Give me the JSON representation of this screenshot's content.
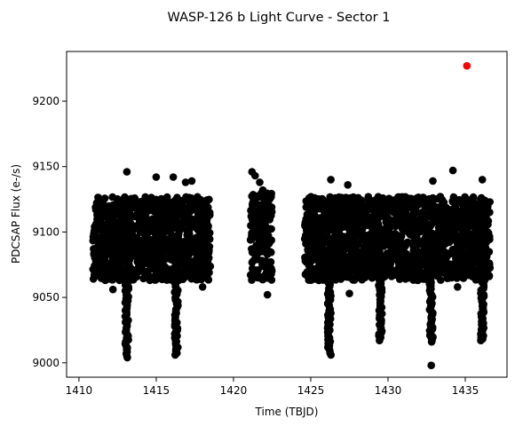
{
  "chart_data": {
    "type": "scatter",
    "title": "WASP-126 b Light Curve - Sector 1",
    "xlabel": "Time (TBJD)",
    "ylabel": "PDCSAP Flux (e-/s)",
    "xlim": [
      1409.2,
      1437.7
    ],
    "ylim": [
      8989,
      9238
    ],
    "xticks": [
      1410,
      1415,
      1420,
      1425,
      1430,
      1435
    ],
    "yticks": [
      9000,
      9050,
      9100,
      9150,
      9200
    ],
    "grid": false,
    "legend": "none",
    "point_color": "#000000",
    "outlier_color": "#ff0000",
    "segments": [
      {
        "x_start": 1410.9,
        "x_end": 1418.5,
        "flux_min": 9063,
        "flux_max": 9127
      },
      {
        "x_start": 1421.1,
        "x_end": 1422.5,
        "flux_min": 9063,
        "flux_max": 9130
      },
      {
        "x_start": 1424.6,
        "x_end": 1436.6,
        "flux_min": 9063,
        "flux_max": 9127
      }
    ],
    "transits": [
      {
        "time": 1413.1,
        "min_flux": 9004
      },
      {
        "time": 1416.3,
        "min_flux": 9006
      },
      {
        "time": 1426.2,
        "min_flux": 9006
      },
      {
        "time": 1429.5,
        "min_flux": 9017
      },
      {
        "time": 1432.8,
        "min_flux": 9016
      },
      {
        "time": 1436.1,
        "min_flux": 9017
      }
    ],
    "points": [
      {
        "x": 1413.1,
        "y": 9146
      },
      {
        "x": 1415.0,
        "y": 9142
      },
      {
        "x": 1416.1,
        "y": 9142
      },
      {
        "x": 1416.9,
        "y": 9138
      },
      {
        "x": 1417.3,
        "y": 9139
      },
      {
        "x": 1421.2,
        "y": 9146
      },
      {
        "x": 1421.4,
        "y": 9143
      },
      {
        "x": 1421.7,
        "y": 9138
      },
      {
        "x": 1421.9,
        "y": 9132
      },
      {
        "x": 1422.2,
        "y": 9052
      },
      {
        "x": 1426.3,
        "y": 9140
      },
      {
        "x": 1427.4,
        "y": 9136
      },
      {
        "x": 1432.9,
        "y": 9139
      },
      {
        "x": 1434.2,
        "y": 9147
      },
      {
        "x": 1436.1,
        "y": 9140
      },
      {
        "x": 1432.8,
        "y": 8998
      },
      {
        "x": 1418.0,
        "y": 9058
      },
      {
        "x": 1412.2,
        "y": 9056
      },
      {
        "x": 1427.5,
        "y": 9053
      },
      {
        "x": 1434.5,
        "y": 9058
      },
      {
        "x": 1435.1,
        "y": 9227,
        "outlier": true
      }
    ]
  }
}
